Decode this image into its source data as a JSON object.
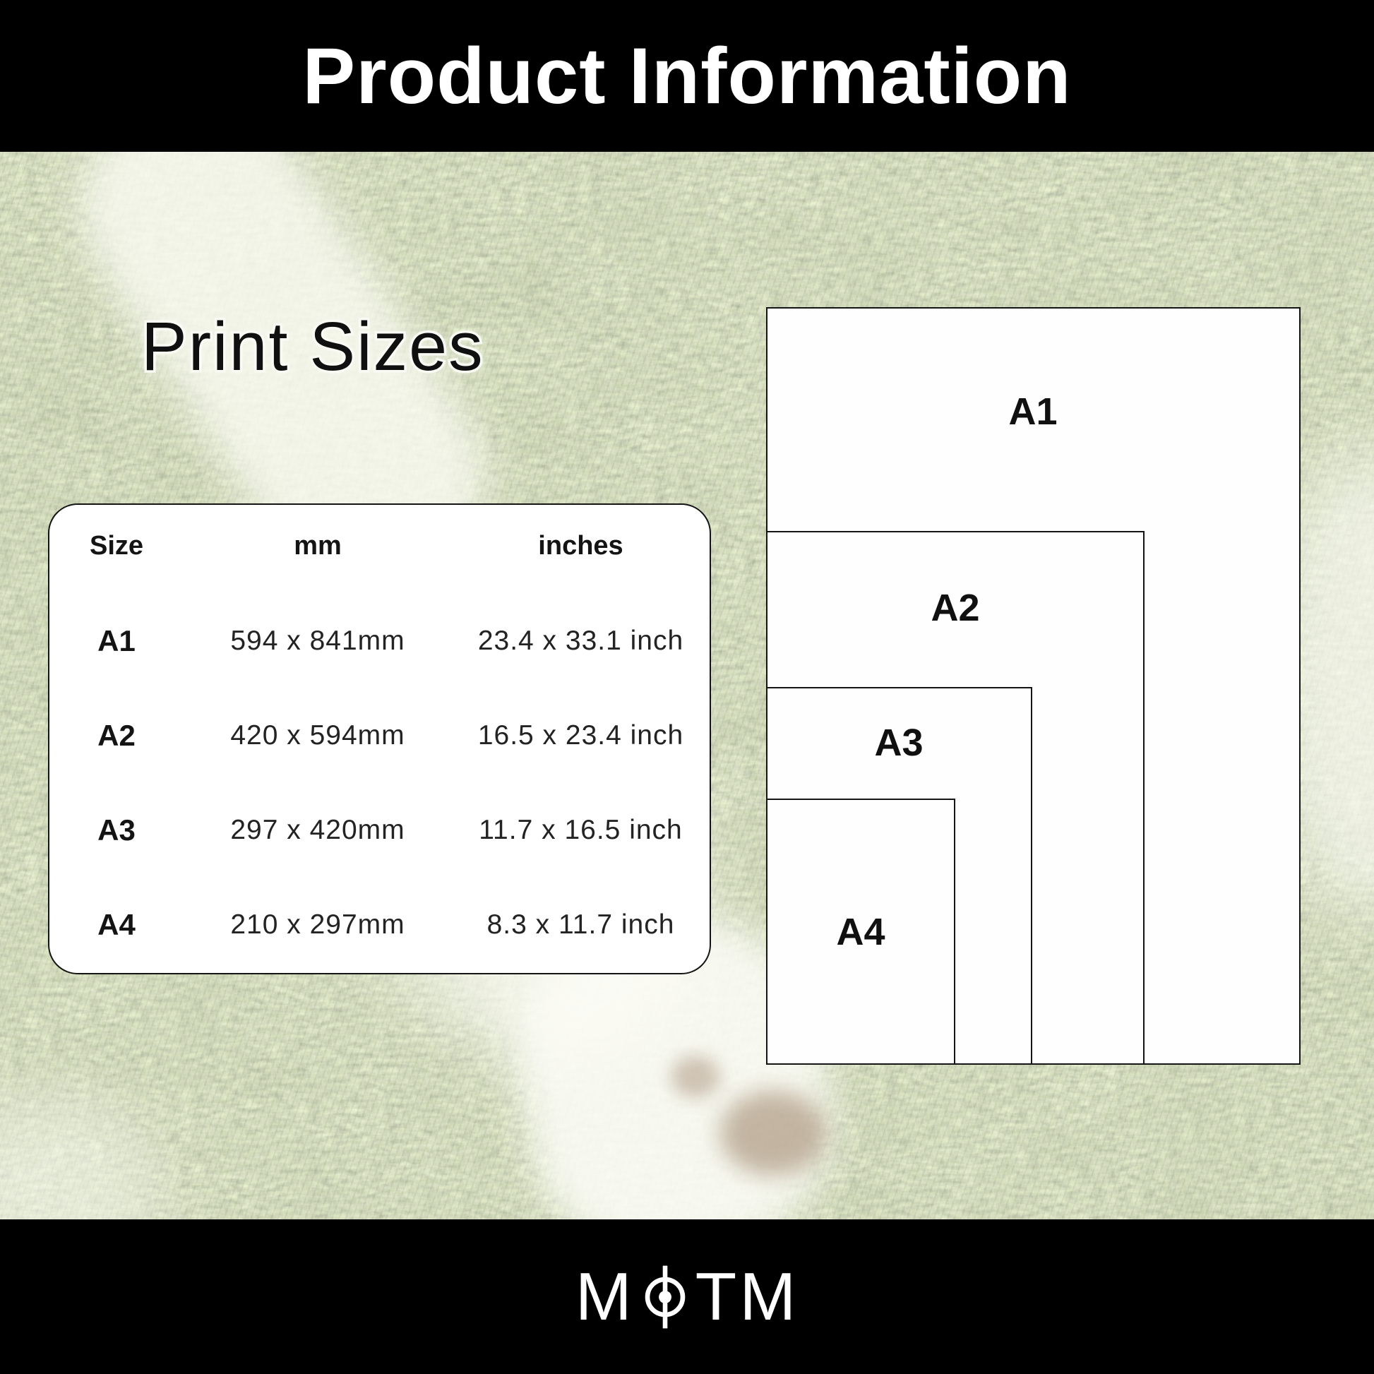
{
  "header": {
    "title": "Product Information"
  },
  "print_sizes": {
    "title": "Print Sizes"
  },
  "size_table": {
    "columns": {
      "size": "Size",
      "mm": "mm",
      "inches": "inches"
    },
    "rows": [
      {
        "size": "A1",
        "mm": "594 x 841mm",
        "inches": "23.4 x 33.1 inch"
      },
      {
        "size": "A2",
        "mm": "420 x 594mm",
        "inches": "16.5 x 23.4 inch"
      },
      {
        "size": "A3",
        "mm": "297 x 420mm",
        "inches": "11.7 x 16.5 inch"
      },
      {
        "size": "A4",
        "mm": "210 x 297mm",
        "inches": "8.3 x 11.7 inch"
      }
    ]
  },
  "diagram": {
    "papers": [
      {
        "label": "A1"
      },
      {
        "label": "A2"
      },
      {
        "label": "A3"
      },
      {
        "label": "A4"
      }
    ]
  },
  "footer": {
    "brand_prefix": "M",
    "brand_suffix": "TM",
    "icon": "football-centre-spot-icon"
  },
  "colors": {
    "bar_background": "#000000",
    "bar_text": "#ffffff",
    "card_background": "#ffffff",
    "ink": "#141414",
    "grass_base": "#85895f",
    "chalk_white": "#faf9f2"
  }
}
